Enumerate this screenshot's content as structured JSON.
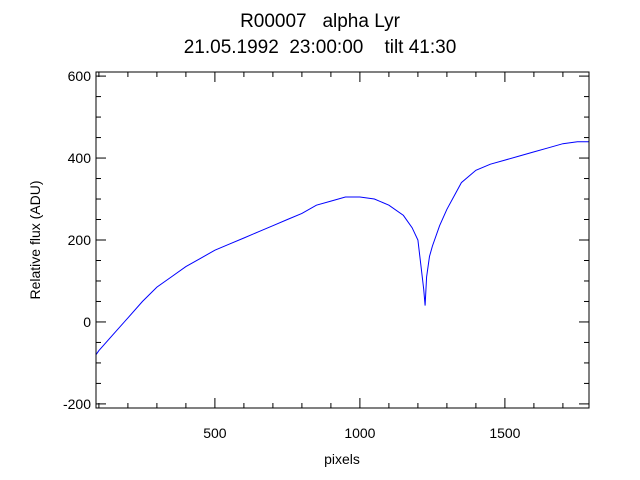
{
  "chart_data": {
    "type": "line",
    "title": "R00007   alpha Lyr",
    "subtitle": "21.05.1992  23:00:00    tilt 41:30",
    "xlabel": "pixels",
    "ylabel": "Relative flux (ADU)",
    "xlim": [
      90,
      1790
    ],
    "ylim": [
      -210,
      610
    ],
    "xticks": [
      500,
      1000,
      1500
    ],
    "xtick_labels": [
      "500",
      "1000",
      "1500"
    ],
    "yticks": [
      -200,
      0,
      200,
      400,
      600
    ],
    "ytick_labels": [
      "-200",
      "0",
      "200",
      "400",
      "600"
    ],
    "grid": false,
    "series": [
      {
        "name": "",
        "color": "#0000ff",
        "x": [
          90,
          100,
          150,
          200,
          250,
          300,
          350,
          400,
          450,
          500,
          550,
          600,
          650,
          700,
          750,
          800,
          850,
          900,
          950,
          1000,
          1050,
          1100,
          1150,
          1180,
          1200,
          1210,
          1220,
          1225,
          1230,
          1240,
          1250,
          1275,
          1300,
          1350,
          1400,
          1450,
          1500,
          1550,
          1600,
          1650,
          1700,
          1750,
          1790
        ],
        "y": [
          -80,
          -70,
          -30,
          10,
          50,
          85,
          110,
          135,
          155,
          175,
          190,
          205,
          220,
          235,
          250,
          265,
          285,
          295,
          305,
          305,
          300,
          285,
          260,
          230,
          200,
          140,
          80,
          40,
          110,
          160,
          185,
          235,
          275,
          340,
          370,
          385,
          395,
          405,
          415,
          425,
          435,
          440,
          440
        ]
      }
    ]
  }
}
